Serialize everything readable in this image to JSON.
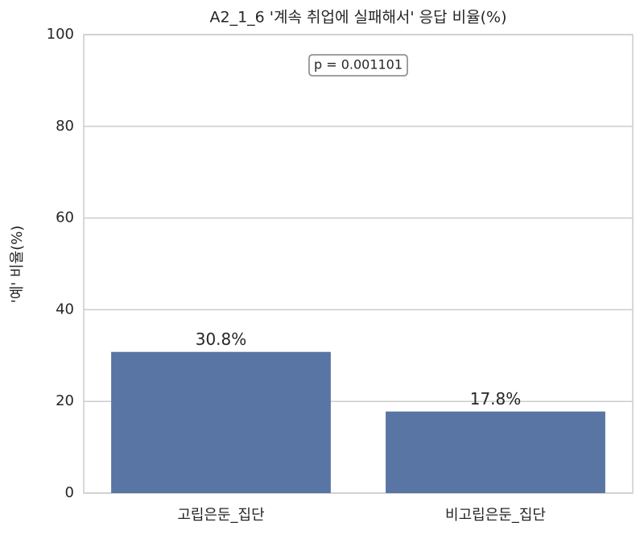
{
  "chart_data": {
    "type": "bar",
    "title": "A2_1_6 '계속 취업에 실패해서' 응답 비율(%)",
    "y_label": "'예' 비율(%)",
    "categories": [
      "고립은둔_집단",
      "비고립은둔_집단"
    ],
    "values": [
      30.8,
      17.8
    ],
    "value_labels": [
      "30.8%",
      "17.8%"
    ],
    "color": "#5975a4",
    "ylim": [
      0,
      100
    ],
    "yticks": [
      0,
      20,
      40,
      60,
      80,
      100
    ],
    "grid": true,
    "annotation": "p = 0.001101"
  }
}
